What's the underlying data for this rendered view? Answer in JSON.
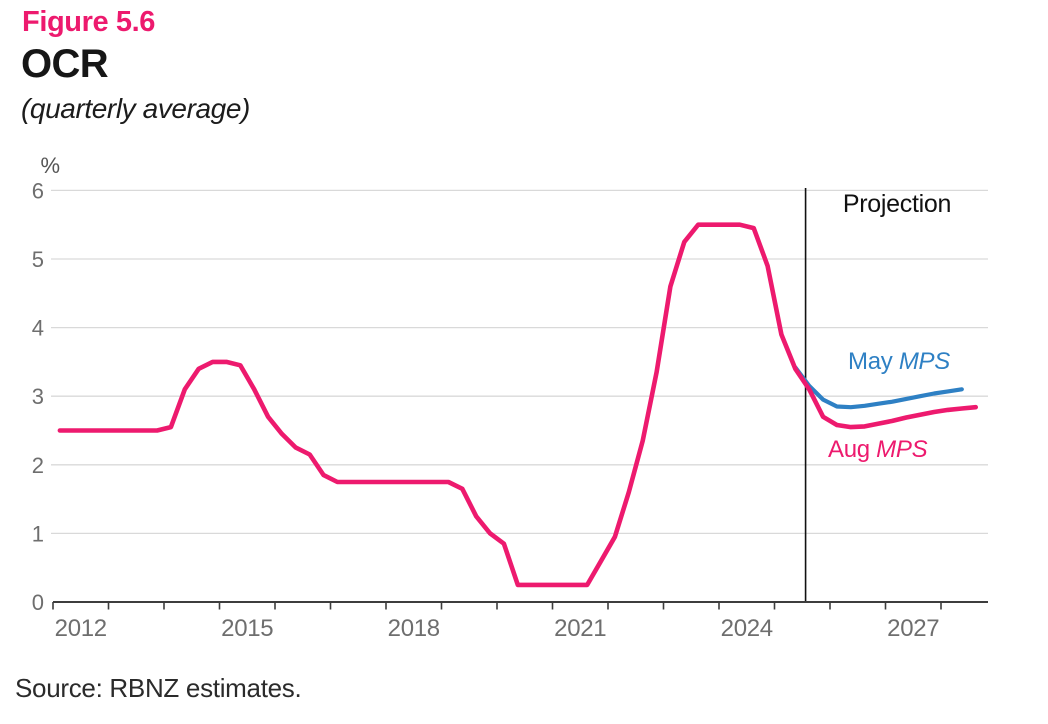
{
  "header": {
    "figure_label": "Figure 5.6",
    "title": "OCR",
    "subtitle": "(quarterly average)"
  },
  "footer": {
    "source": "Source: RBNZ estimates."
  },
  "colors": {
    "aug_mps": "#ed1a6e",
    "may_mps": "#2e80c4",
    "grid": "#d9d9d9",
    "axis": "#3d3d3d",
    "tick_label": "#6e6e6e",
    "projection_line": "#111111",
    "projection_text": "#111111"
  },
  "chart_data": {
    "type": "line",
    "title": "OCR",
    "subtitle": "(quarterly average)",
    "unit_label": "%",
    "ylim": [
      0,
      6
    ],
    "y_ticks": [
      0,
      1,
      2,
      3,
      4,
      5,
      6
    ],
    "xlim": [
      2012,
      2028.85
    ],
    "x_tick_years": [
      2012,
      2013,
      2014,
      2015,
      2016,
      2017,
      2018,
      2019,
      2020,
      2021,
      2022,
      2023,
      2024,
      2025,
      2026,
      2027,
      2028
    ],
    "x_label_years": [
      2012,
      2015,
      2018,
      2021,
      2024,
      2027
    ],
    "grid": "horizontal",
    "projection_start": 2025.56,
    "projection_label": "Projection",
    "series": [
      {
        "name": "Aug MPS",
        "label_regular": "Aug ",
        "label_italic": "MPS",
        "color": "#ed1a6e",
        "x": [
          2012.125,
          2012.375,
          2012.625,
          2012.875,
          2013.125,
          2013.375,
          2013.625,
          2013.875,
          2014.125,
          2014.375,
          2014.625,
          2014.875,
          2015.125,
          2015.375,
          2015.625,
          2015.875,
          2016.125,
          2016.375,
          2016.625,
          2016.875,
          2017.125,
          2017.375,
          2017.625,
          2017.875,
          2018.125,
          2018.375,
          2018.625,
          2018.875,
          2019.125,
          2019.375,
          2019.625,
          2019.875,
          2020.125,
          2020.375,
          2020.625,
          2020.875,
          2021.125,
          2021.375,
          2021.625,
          2021.875,
          2022.125,
          2022.375,
          2022.625,
          2022.875,
          2023.125,
          2023.375,
          2023.625,
          2023.875,
          2024.125,
          2024.375,
          2024.625,
          2024.875,
          2025.125,
          2025.375,
          2025.625,
          2025.875,
          2026.125,
          2026.375,
          2026.625,
          2026.875,
          2027.125,
          2027.375,
          2027.625,
          2027.875,
          2028.125,
          2028.375,
          2028.625
        ],
        "values": [
          2.5,
          2.5,
          2.5,
          2.5,
          2.5,
          2.5,
          2.5,
          2.5,
          2.55,
          3.1,
          3.4,
          3.5,
          3.5,
          3.45,
          3.1,
          2.7,
          2.45,
          2.25,
          2.15,
          1.85,
          1.75,
          1.75,
          1.75,
          1.75,
          1.75,
          1.75,
          1.75,
          1.75,
          1.75,
          1.65,
          1.25,
          1.0,
          0.85,
          0.25,
          0.25,
          0.25,
          0.25,
          0.25,
          0.25,
          0.6,
          0.95,
          1.6,
          2.35,
          3.35,
          4.6,
          5.25,
          5.5,
          5.5,
          5.5,
          5.5,
          5.45,
          4.9,
          3.9,
          3.4,
          3.1,
          2.7,
          2.58,
          2.55,
          2.56,
          2.6,
          2.64,
          2.69,
          2.73,
          2.77,
          2.8,
          2.82,
          2.84
        ]
      },
      {
        "name": "May MPS",
        "label_regular": "May ",
        "label_italic": "MPS",
        "color": "#2e80c4",
        "x": [
          2025.375,
          2025.625,
          2025.875,
          2026.125,
          2026.375,
          2026.625,
          2026.875,
          2027.125,
          2027.375,
          2027.625,
          2027.875,
          2028.125,
          2028.375
        ],
        "values": [
          3.42,
          3.15,
          2.95,
          2.85,
          2.84,
          2.86,
          2.89,
          2.92,
          2.96,
          3.0,
          3.04,
          3.07,
          3.1
        ]
      }
    ]
  }
}
